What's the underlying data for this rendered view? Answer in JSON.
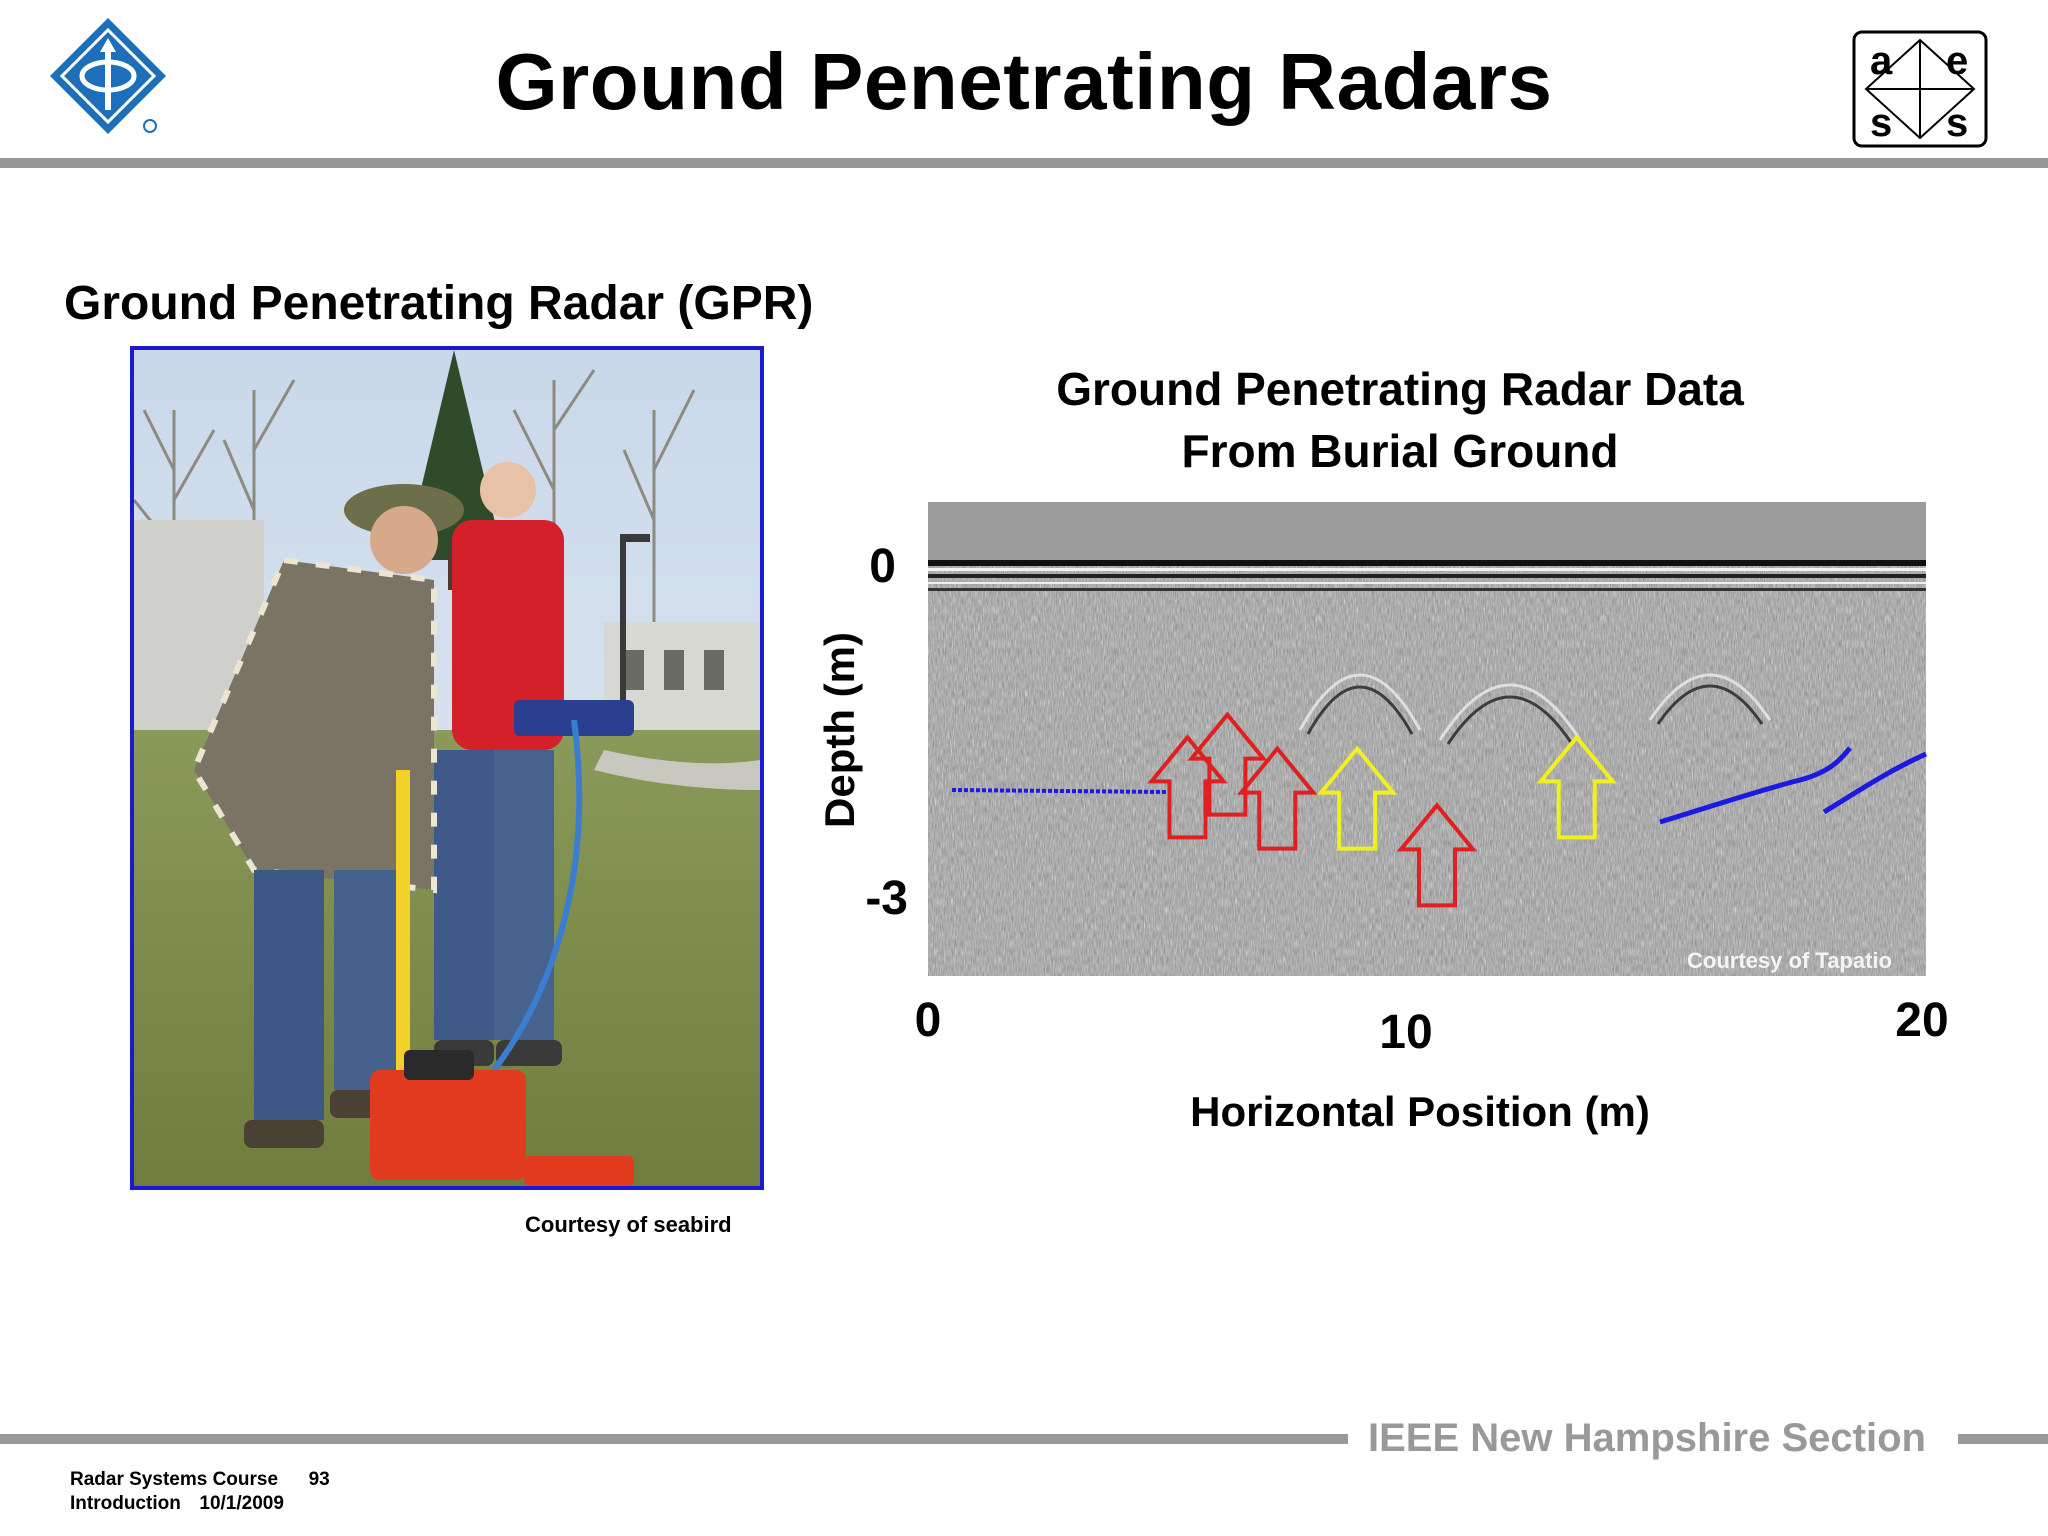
{
  "slide": {
    "title": "Ground Penetrating Radars",
    "subtitle": "Ground Penetrating Radar (GPR)",
    "photo_credit": "Courtesy of seabird",
    "section_name": "IEEE New Hampshire Section"
  },
  "logos": {
    "left": "ieee-logo-icon",
    "right_letters": [
      "a",
      "e",
      "s",
      "s"
    ]
  },
  "chart_data": {
    "type": "heatmap",
    "title_lines": [
      "Ground Penetrating Radar Data",
      "From Burial Ground"
    ],
    "xlabel": "Horizontal Position (m)",
    "ylabel": "Depth (m)",
    "x_ticks": [
      "0",
      "10",
      "20"
    ],
    "y_ticks": [
      "0",
      "-3"
    ],
    "xlim": [
      0,
      20
    ],
    "ylim": [
      -3,
      0
    ],
    "credit": "Courtesy of Tapatio",
    "markers": [
      {
        "color": "red",
        "x": 5.2,
        "depth": -1.9
      },
      {
        "color": "red",
        "x": 6.0,
        "depth": -1.7
      },
      {
        "color": "red",
        "x": 7.0,
        "depth": -2.0
      },
      {
        "color": "red",
        "x": 10.2,
        "depth": -2.5
      },
      {
        "color": "yellow",
        "x": 8.6,
        "depth": -2.0
      },
      {
        "color": "yellow",
        "x": 13.0,
        "depth": -1.9
      }
    ],
    "colors": {
      "red": "#e02020",
      "yellow": "#f0f020",
      "blue": "#1a1ae0"
    }
  },
  "footer": {
    "course": "Radar Systems Course",
    "page": "93",
    "module": "Introduction",
    "date": "10/1/2009"
  }
}
